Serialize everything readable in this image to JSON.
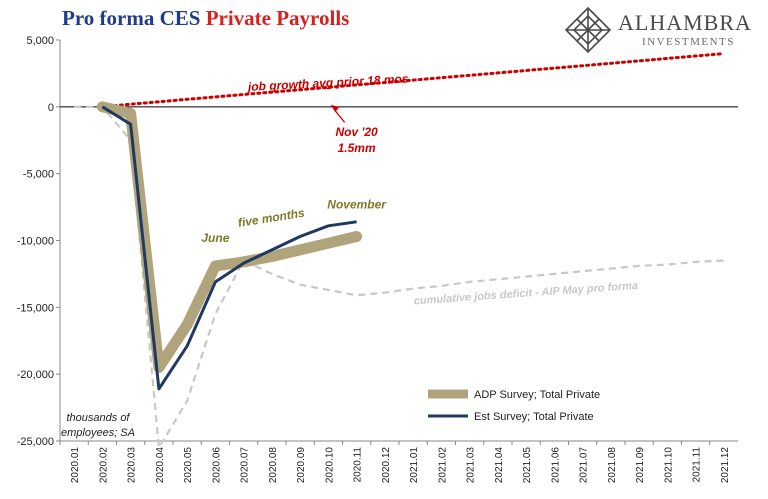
{
  "title_part1": "Pro forma CES",
  "title_part2": "Private Payrolls",
  "logo": {
    "brand": "ALHAMBRA",
    "sub": "INVESTMENTS",
    "icon": "diamond-lattice-icon"
  },
  "colors": {
    "adp": "#b0a47c",
    "est": "#1f3960",
    "deficit": "#c8c8c8",
    "trend": "#cc0000",
    "title_blue": "#1f3c88",
    "title_red": "#d81e1e",
    "label_olive": "#7a7a2a"
  },
  "chart_data": {
    "type": "line",
    "title": "Pro forma CES Private Payrolls",
    "ylabel": "thousands of employees; SA",
    "ylim": [
      -25000,
      5000
    ],
    "y_ticks": [
      5000,
      0,
      -5000,
      -10000,
      -15000,
      -20000,
      -25000
    ],
    "y_tick_labels": [
      "5,000",
      "0",
      "-5,000",
      "-10,000",
      "-15,000",
      "-20,000",
      "-25,000"
    ],
    "categories": [
      "2020.01",
      "2020.02",
      "2020.03",
      "2020.04",
      "2020.05",
      "2020.06",
      "2020.07",
      "2020.08",
      "2020.09",
      "2020.10",
      "2020.11",
      "2020.12",
      "2021.01",
      "2021.02",
      "2021.03",
      "2021.04",
      "2021.05",
      "2021.06",
      "2021.07",
      "2021.08",
      "2021.09",
      "2021.10",
      "2021.11",
      "2021.12"
    ],
    "series": [
      {
        "name": "ADP Survey; Total Private",
        "style": "thick",
        "values": [
          null,
          0,
          -500,
          -19500,
          -16300,
          -11900,
          -11600,
          -11200,
          -10700,
          -10200,
          -9700,
          null,
          null,
          null,
          null,
          null,
          null,
          null,
          null,
          null,
          null,
          null,
          null,
          null
        ]
      },
      {
        "name": "Est Survey; Total Private",
        "style": "solid",
        "values": [
          null,
          0,
          -1300,
          -21100,
          -17900,
          -13100,
          -11700,
          -10700,
          -9700,
          -8900,
          -8600,
          null,
          null,
          null,
          null,
          null,
          null,
          null,
          null,
          null,
          null,
          null,
          null,
          null
        ]
      },
      {
        "name": "cumulative jobs deficit - AIP May pro forma",
        "style": "dashed",
        "values": [
          0,
          0,
          -2500,
          -25500,
          -22000,
          -15500,
          -11500,
          -12500,
          -13300,
          -13700,
          -14100,
          -13900,
          -13600,
          -13400,
          -13100,
          -12900,
          -12700,
          -12500,
          -12300,
          -12100,
          -11900,
          -11800,
          -11600,
          -11500
        ]
      },
      {
        "name": "job growth avg prior 18 mos",
        "style": "dotted",
        "values": [
          null,
          0,
          200,
          380,
          560,
          740,
          920,
          1100,
          1280,
          1460,
          1640,
          1820,
          2000,
          2180,
          2360,
          2540,
          2720,
          2900,
          3080,
          3260,
          3440,
          3620,
          3800,
          3980
        ]
      }
    ],
    "annotations": [
      {
        "id": "trend-label",
        "text": "job growth avg prior 18 mos",
        "x": "2020.10",
        "y": 1500
      },
      {
        "id": "nov20-label",
        "text": "Nov '20",
        "text2": "1.5mm",
        "x": "2020.11",
        "y": -2200
      },
      {
        "id": "june-label",
        "text": "June",
        "x": "2020.06",
        "y": -10100
      },
      {
        "id": "fivemonths-label",
        "text": "five months",
        "x": "2020.08",
        "y": -8600
      },
      {
        "id": "november-label",
        "text": "November",
        "x": "2020.11",
        "y": -7600
      },
      {
        "id": "deficit-label",
        "text": "cumulative jobs deficit - AIP May pro forma",
        "x": "2021.05",
        "y": -14200
      }
    ],
    "legend_position": "bottom-center",
    "grid": false
  }
}
